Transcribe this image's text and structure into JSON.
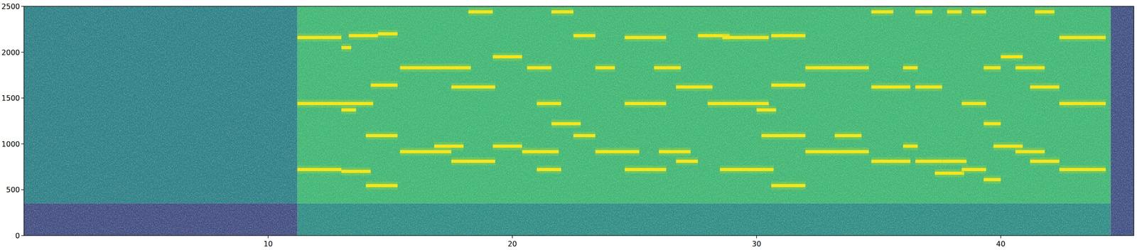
{
  "chart_data": {
    "type": "spectrogram",
    "xlim": [
      0,
      45.45
    ],
    "ylim": [
      0,
      2500
    ],
    "xticks": [
      10,
      20,
      30,
      40
    ],
    "yticks": [
      0,
      500,
      1000,
      1500,
      2000,
      2500
    ],
    "regions": [
      {
        "start": 0,
        "end": 11.2,
        "low": 350,
        "high": 2500,
        "color": "#2a7e8e"
      },
      {
        "start": 0,
        "end": 11.2,
        "low": 0,
        "high": 350,
        "color": "#404a89"
      },
      {
        "start": 11.2,
        "end": 44.5,
        "low": 350,
        "high": 2500,
        "color": "#3db57a"
      },
      {
        "start": 11.2,
        "end": 44.5,
        "low": 0,
        "high": 350,
        "color": "#2b8a8c"
      },
      {
        "start": 44.5,
        "end": 45.45,
        "low": 0,
        "high": 2500,
        "color": "#3d4d8a"
      }
    ],
    "tones": [
      {
        "start": 11.2,
        "end": 13.0,
        "freq": 720
      },
      {
        "start": 11.2,
        "end": 13.0,
        "freq": 1440
      },
      {
        "start": 11.2,
        "end": 13.0,
        "freq": 2160
      },
      {
        "start": 13.0,
        "end": 13.6,
        "freq": 1370
      },
      {
        "start": 13.0,
        "end": 13.4,
        "freq": 2050
      },
      {
        "start": 13.0,
        "end": 14.2,
        "freq": 700
      },
      {
        "start": 13.3,
        "end": 14.5,
        "freq": 2180
      },
      {
        "start": 13.0,
        "end": 14.3,
        "freq": 1440
      },
      {
        "start": 14.0,
        "end": 15.3,
        "freq": 545
      },
      {
        "start": 14.0,
        "end": 15.3,
        "freq": 1090
      },
      {
        "start": 14.2,
        "end": 15.3,
        "freq": 1640
      },
      {
        "start": 14.5,
        "end": 15.3,
        "freq": 2200
      },
      {
        "start": 15.4,
        "end": 17.5,
        "freq": 915
      },
      {
        "start": 15.4,
        "end": 18.3,
        "freq": 1830
      },
      {
        "start": 16.8,
        "end": 18.0,
        "freq": 975
      },
      {
        "start": 17.5,
        "end": 19.3,
        "freq": 810
      },
      {
        "start": 17.5,
        "end": 19.3,
        "freq": 1620
      },
      {
        "start": 18.2,
        "end": 19.2,
        "freq": 2440
      },
      {
        "start": 19.2,
        "end": 20.4,
        "freq": 975
      },
      {
        "start": 19.2,
        "end": 20.4,
        "freq": 1950
      },
      {
        "start": 20.4,
        "end": 21.9,
        "freq": 915
      },
      {
        "start": 20.6,
        "end": 21.6,
        "freq": 1830
      },
      {
        "start": 21.0,
        "end": 22.0,
        "freq": 720
      },
      {
        "start": 21.0,
        "end": 22.0,
        "freq": 1440
      },
      {
        "start": 21.6,
        "end": 22.8,
        "freq": 1220
      },
      {
        "start": 21.6,
        "end": 22.5,
        "freq": 2440
      },
      {
        "start": 22.5,
        "end": 23.4,
        "freq": 1090
      },
      {
        "start": 22.5,
        "end": 23.4,
        "freq": 2180
      },
      {
        "start": 23.4,
        "end": 25.2,
        "freq": 915
      },
      {
        "start": 23.4,
        "end": 24.2,
        "freq": 1830
      },
      {
        "start": 24.6,
        "end": 26.3,
        "freq": 720
      },
      {
        "start": 24.6,
        "end": 26.3,
        "freq": 1440
      },
      {
        "start": 24.6,
        "end": 26.3,
        "freq": 2160
      },
      {
        "start": 25.8,
        "end": 26.9,
        "freq": 1830
      },
      {
        "start": 26.0,
        "end": 27.3,
        "freq": 915
      },
      {
        "start": 26.7,
        "end": 28.2,
        "freq": 1620
      },
      {
        "start": 26.7,
        "end": 27.6,
        "freq": 810
      },
      {
        "start": 27.6,
        "end": 28.9,
        "freq": 2180
      },
      {
        "start": 28.0,
        "end": 30.5,
        "freq": 1440
      },
      {
        "start": 28.5,
        "end": 30.7,
        "freq": 720
      },
      {
        "start": 28.6,
        "end": 30.5,
        "freq": 2160
      },
      {
        "start": 30.0,
        "end": 30.8,
        "freq": 1370
      },
      {
        "start": 30.6,
        "end": 32.0,
        "freq": 545
      },
      {
        "start": 30.2,
        "end": 32.0,
        "freq": 1090
      },
      {
        "start": 30.6,
        "end": 32.0,
        "freq": 1640
      },
      {
        "start": 30.6,
        "end": 32.0,
        "freq": 2180
      },
      {
        "start": 32.0,
        "end": 34.6,
        "freq": 915
      },
      {
        "start": 32.0,
        "end": 34.6,
        "freq": 1830
      },
      {
        "start": 33.2,
        "end": 34.3,
        "freq": 1090
      },
      {
        "start": 34.7,
        "end": 36.3,
        "freq": 810
      },
      {
        "start": 34.7,
        "end": 36.3,
        "freq": 1620
      },
      {
        "start": 34.7,
        "end": 35.6,
        "freq": 2440
      },
      {
        "start": 36.0,
        "end": 36.6,
        "freq": 975
      },
      {
        "start": 36.0,
        "end": 36.6,
        "freq": 1830
      },
      {
        "start": 36.5,
        "end": 37.6,
        "freq": 810
      },
      {
        "start": 36.5,
        "end": 37.6,
        "freq": 1620
      },
      {
        "start": 36.5,
        "end": 37.2,
        "freq": 2440
      },
      {
        "start": 37.3,
        "end": 38.5,
        "freq": 680
      },
      {
        "start": 37.6,
        "end": 38.6,
        "freq": 810
      },
      {
        "start": 37.8,
        "end": 38.4,
        "freq": 2440
      },
      {
        "start": 38.4,
        "end": 39.4,
        "freq": 720
      },
      {
        "start": 38.4,
        "end": 39.4,
        "freq": 1440
      },
      {
        "start": 38.8,
        "end": 39.4,
        "freq": 2440
      },
      {
        "start": 39.3,
        "end": 40.0,
        "freq": 610
      },
      {
        "start": 39.3,
        "end": 40.0,
        "freq": 1220
      },
      {
        "start": 39.3,
        "end": 40.0,
        "freq": 1830
      },
      {
        "start": 39.7,
        "end": 40.9,
        "freq": 975
      },
      {
        "start": 40.0,
        "end": 40.9,
        "freq": 1950
      },
      {
        "start": 40.6,
        "end": 41.8,
        "freq": 915
      },
      {
        "start": 40.6,
        "end": 41.8,
        "freq": 1830
      },
      {
        "start": 41.2,
        "end": 42.4,
        "freq": 810
      },
      {
        "start": 41.2,
        "end": 42.4,
        "freq": 1620
      },
      {
        "start": 41.4,
        "end": 42.2,
        "freq": 2440
      },
      {
        "start": 42.4,
        "end": 44.3,
        "freq": 720
      },
      {
        "start": 42.4,
        "end": 44.3,
        "freq": 1440
      },
      {
        "start": 42.4,
        "end": 44.3,
        "freq": 2160
      }
    ]
  }
}
